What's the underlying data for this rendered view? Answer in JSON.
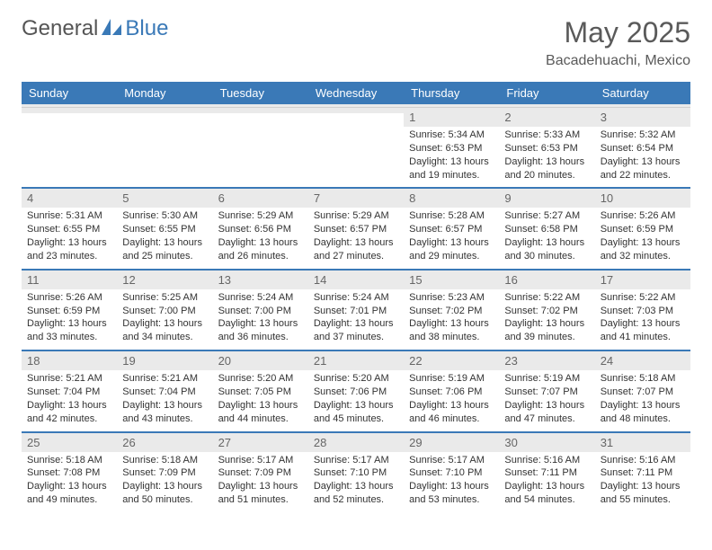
{
  "logo": {
    "part1": "General",
    "part2": "Blue"
  },
  "header": {
    "title": "May 2025",
    "subtitle": "Bacadehuachi, Mexico"
  },
  "colors": {
    "brand_blue": "#3a79b7",
    "header_bg": "#3a79b7",
    "header_text": "#ffffff",
    "day_bg": "#ffffff",
    "shaded_bg": "#eaeaea",
    "text": "#333333",
    "muted": "#666666"
  },
  "daynames": [
    "Sunday",
    "Monday",
    "Tuesday",
    "Wednesday",
    "Thursday",
    "Friday",
    "Saturday"
  ],
  "weeks": [
    [
      {
        "n": "",
        "sr": "",
        "ss": "",
        "dl": ""
      },
      {
        "n": "",
        "sr": "",
        "ss": "",
        "dl": ""
      },
      {
        "n": "",
        "sr": "",
        "ss": "",
        "dl": ""
      },
      {
        "n": "",
        "sr": "",
        "ss": "",
        "dl": ""
      },
      {
        "n": "1",
        "sr": "Sunrise: 5:34 AM",
        "ss": "Sunset: 6:53 PM",
        "dl": "Daylight: 13 hours and 19 minutes."
      },
      {
        "n": "2",
        "sr": "Sunrise: 5:33 AM",
        "ss": "Sunset: 6:53 PM",
        "dl": "Daylight: 13 hours and 20 minutes."
      },
      {
        "n": "3",
        "sr": "Sunrise: 5:32 AM",
        "ss": "Sunset: 6:54 PM",
        "dl": "Daylight: 13 hours and 22 minutes."
      }
    ],
    [
      {
        "n": "4",
        "sr": "Sunrise: 5:31 AM",
        "ss": "Sunset: 6:55 PM",
        "dl": "Daylight: 13 hours and 23 minutes."
      },
      {
        "n": "5",
        "sr": "Sunrise: 5:30 AM",
        "ss": "Sunset: 6:55 PM",
        "dl": "Daylight: 13 hours and 25 minutes."
      },
      {
        "n": "6",
        "sr": "Sunrise: 5:29 AM",
        "ss": "Sunset: 6:56 PM",
        "dl": "Daylight: 13 hours and 26 minutes."
      },
      {
        "n": "7",
        "sr": "Sunrise: 5:29 AM",
        "ss": "Sunset: 6:57 PM",
        "dl": "Daylight: 13 hours and 27 minutes."
      },
      {
        "n": "8",
        "sr": "Sunrise: 5:28 AM",
        "ss": "Sunset: 6:57 PM",
        "dl": "Daylight: 13 hours and 29 minutes."
      },
      {
        "n": "9",
        "sr": "Sunrise: 5:27 AM",
        "ss": "Sunset: 6:58 PM",
        "dl": "Daylight: 13 hours and 30 minutes."
      },
      {
        "n": "10",
        "sr": "Sunrise: 5:26 AM",
        "ss": "Sunset: 6:59 PM",
        "dl": "Daylight: 13 hours and 32 minutes."
      }
    ],
    [
      {
        "n": "11",
        "sr": "Sunrise: 5:26 AM",
        "ss": "Sunset: 6:59 PM",
        "dl": "Daylight: 13 hours and 33 minutes."
      },
      {
        "n": "12",
        "sr": "Sunrise: 5:25 AM",
        "ss": "Sunset: 7:00 PM",
        "dl": "Daylight: 13 hours and 34 minutes."
      },
      {
        "n": "13",
        "sr": "Sunrise: 5:24 AM",
        "ss": "Sunset: 7:00 PM",
        "dl": "Daylight: 13 hours and 36 minutes."
      },
      {
        "n": "14",
        "sr": "Sunrise: 5:24 AM",
        "ss": "Sunset: 7:01 PM",
        "dl": "Daylight: 13 hours and 37 minutes."
      },
      {
        "n": "15",
        "sr": "Sunrise: 5:23 AM",
        "ss": "Sunset: 7:02 PM",
        "dl": "Daylight: 13 hours and 38 minutes."
      },
      {
        "n": "16",
        "sr": "Sunrise: 5:22 AM",
        "ss": "Sunset: 7:02 PM",
        "dl": "Daylight: 13 hours and 39 minutes."
      },
      {
        "n": "17",
        "sr": "Sunrise: 5:22 AM",
        "ss": "Sunset: 7:03 PM",
        "dl": "Daylight: 13 hours and 41 minutes."
      }
    ],
    [
      {
        "n": "18",
        "sr": "Sunrise: 5:21 AM",
        "ss": "Sunset: 7:04 PM",
        "dl": "Daylight: 13 hours and 42 minutes."
      },
      {
        "n": "19",
        "sr": "Sunrise: 5:21 AM",
        "ss": "Sunset: 7:04 PM",
        "dl": "Daylight: 13 hours and 43 minutes."
      },
      {
        "n": "20",
        "sr": "Sunrise: 5:20 AM",
        "ss": "Sunset: 7:05 PM",
        "dl": "Daylight: 13 hours and 44 minutes."
      },
      {
        "n": "21",
        "sr": "Sunrise: 5:20 AM",
        "ss": "Sunset: 7:06 PM",
        "dl": "Daylight: 13 hours and 45 minutes."
      },
      {
        "n": "22",
        "sr": "Sunrise: 5:19 AM",
        "ss": "Sunset: 7:06 PM",
        "dl": "Daylight: 13 hours and 46 minutes."
      },
      {
        "n": "23",
        "sr": "Sunrise: 5:19 AM",
        "ss": "Sunset: 7:07 PM",
        "dl": "Daylight: 13 hours and 47 minutes."
      },
      {
        "n": "24",
        "sr": "Sunrise: 5:18 AM",
        "ss": "Sunset: 7:07 PM",
        "dl": "Daylight: 13 hours and 48 minutes."
      }
    ],
    [
      {
        "n": "25",
        "sr": "Sunrise: 5:18 AM",
        "ss": "Sunset: 7:08 PM",
        "dl": "Daylight: 13 hours and 49 minutes."
      },
      {
        "n": "26",
        "sr": "Sunrise: 5:18 AM",
        "ss": "Sunset: 7:09 PM",
        "dl": "Daylight: 13 hours and 50 minutes."
      },
      {
        "n": "27",
        "sr": "Sunrise: 5:17 AM",
        "ss": "Sunset: 7:09 PM",
        "dl": "Daylight: 13 hours and 51 minutes."
      },
      {
        "n": "28",
        "sr": "Sunrise: 5:17 AM",
        "ss": "Sunset: 7:10 PM",
        "dl": "Daylight: 13 hours and 52 minutes."
      },
      {
        "n": "29",
        "sr": "Sunrise: 5:17 AM",
        "ss": "Sunset: 7:10 PM",
        "dl": "Daylight: 13 hours and 53 minutes."
      },
      {
        "n": "30",
        "sr": "Sunrise: 5:16 AM",
        "ss": "Sunset: 7:11 PM",
        "dl": "Daylight: 13 hours and 54 minutes."
      },
      {
        "n": "31",
        "sr": "Sunrise: 5:16 AM",
        "ss": "Sunset: 7:11 PM",
        "dl": "Daylight: 13 hours and 55 minutes."
      }
    ]
  ]
}
